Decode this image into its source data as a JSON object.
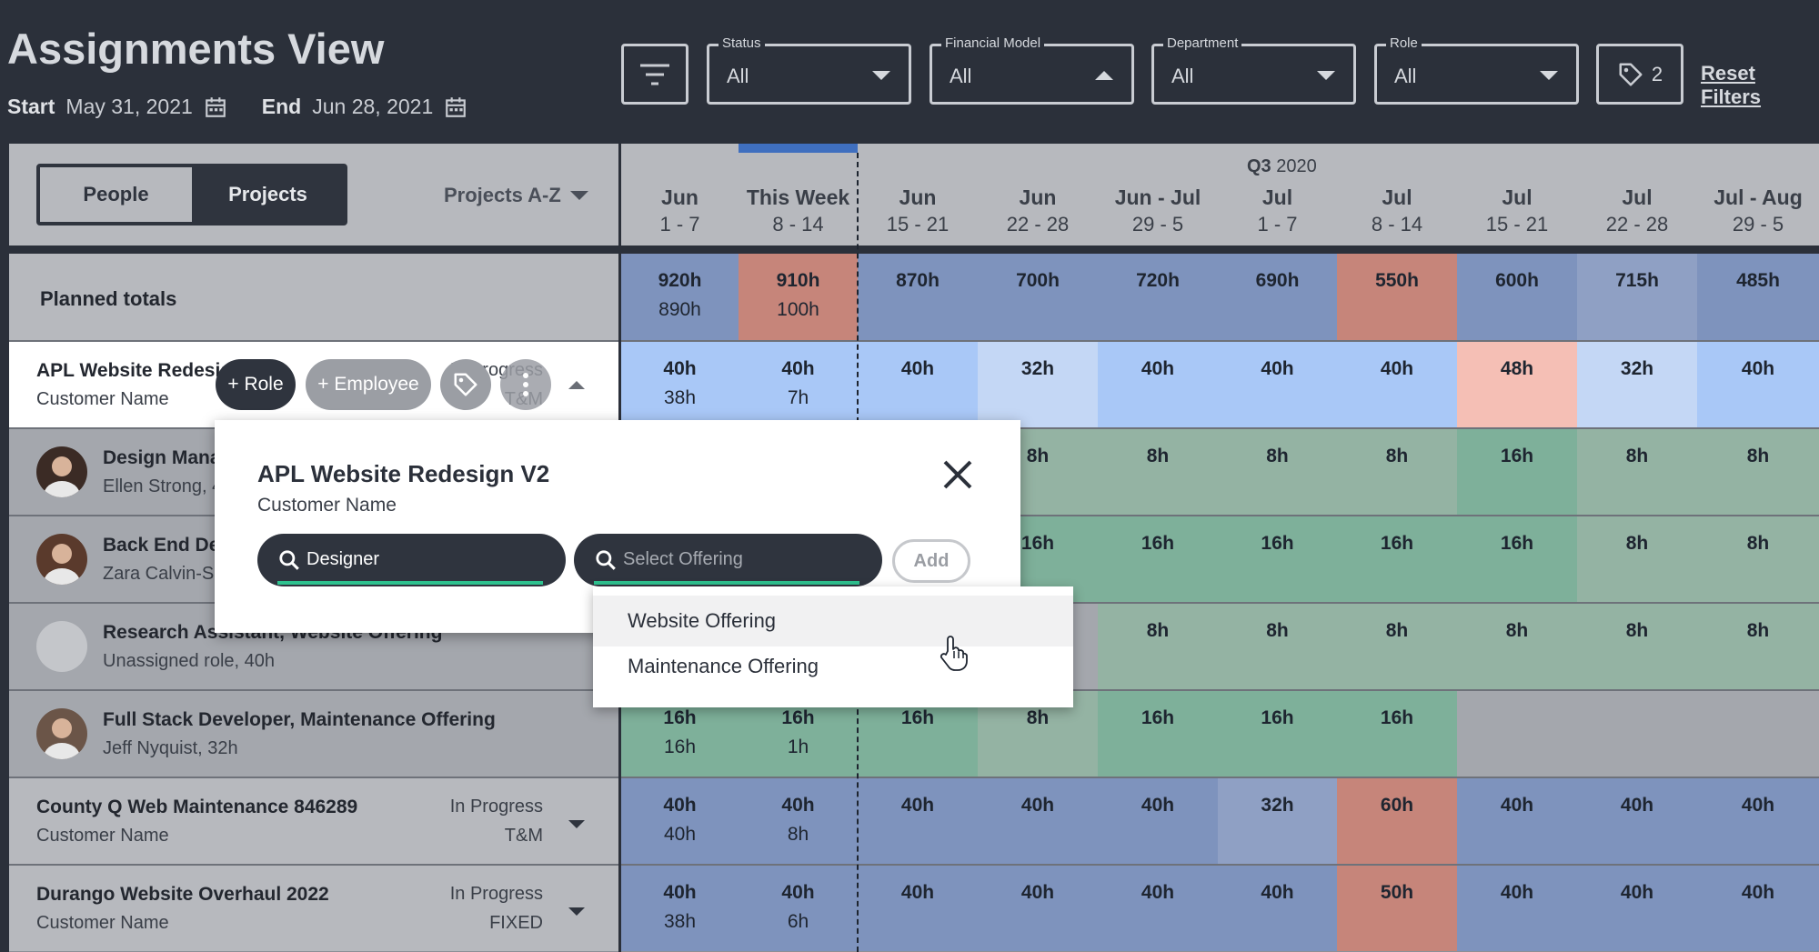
{
  "header": {
    "title": "Assignments View",
    "start_label": "Start",
    "start_date": "May 31, 2021",
    "end_label": "End",
    "end_date": "Jun 28, 2021",
    "filters": [
      {
        "label": "Status",
        "value": "All",
        "open": false
      },
      {
        "label": "Financial Model",
        "value": "All",
        "open": true
      },
      {
        "label": "Department",
        "value": "All",
        "open": false
      },
      {
        "label": "Role",
        "value": "All",
        "open": false
      }
    ],
    "tag_count": "2",
    "reset_label": "Reset Filters"
  },
  "toggle": {
    "people": "People",
    "projects": "Projects",
    "sort": "Projects A-Z"
  },
  "quarter": {
    "q": "Q3",
    "year": " 2020"
  },
  "weeks": [
    {
      "month": "Jun",
      "days": "1 - 7"
    },
    {
      "month": "This Week",
      "days": "8 - 14"
    },
    {
      "month": "Jun",
      "days": "15 - 21"
    },
    {
      "month": "Jun",
      "days": "22 - 28"
    },
    {
      "month": "Jun - Jul",
      "days": "29 - 5"
    },
    {
      "month": "Jul",
      "days": "1 - 7"
    },
    {
      "month": "Jul",
      "days": "8 - 14"
    },
    {
      "month": "Jul",
      "days": "15 - 21"
    },
    {
      "month": "Jul",
      "days": "22 - 28"
    },
    {
      "month": "Jul - Aug",
      "days": "29 - 5"
    }
  ],
  "planned": {
    "label": "Planned totals",
    "cells": [
      {
        "a": "920h",
        "b": "890h",
        "c": "#7e93bd"
      },
      {
        "a": "910h",
        "b": "100h",
        "c": "#c6857a"
      },
      {
        "a": "870h",
        "b": "",
        "c": "#7e93bd"
      },
      {
        "a": "700h",
        "b": "",
        "c": "#7e93bd"
      },
      {
        "a": "720h",
        "b": "",
        "c": "#7e93bd"
      },
      {
        "a": "690h",
        "b": "",
        "c": "#7e93bd"
      },
      {
        "a": "550h",
        "b": "",
        "c": "#c6857a"
      },
      {
        "a": "600h",
        "b": "",
        "c": "#7e93bd"
      },
      {
        "a": "715h",
        "b": "",
        "c": "#8fa0c4"
      },
      {
        "a": "485h",
        "b": "",
        "c": "#7e93bd"
      }
    ]
  },
  "projects": [
    {
      "title": "APL Website Redesign V2",
      "sub": "Customer Name",
      "status": "In Progress",
      "model": "T&M",
      "cells": [
        {
          "a": "40h",
          "b": "38h",
          "c": "#a9c8f7"
        },
        {
          "a": "40h",
          "b": "7h",
          "c": "#a9c8f7"
        },
        {
          "a": "40h",
          "b": "",
          "c": "#a9c8f7"
        },
        {
          "a": "32h",
          "b": "",
          "c": "#c4d7f5"
        },
        {
          "a": "40h",
          "b": "",
          "c": "#a9c8f7"
        },
        {
          "a": "40h",
          "b": "",
          "c": "#a9c8f7"
        },
        {
          "a": "40h",
          "b": "",
          "c": "#a9c8f7"
        },
        {
          "a": "48h",
          "b": "",
          "c": "#f5bfb5"
        },
        {
          "a": "32h",
          "b": "",
          "c": "#c4d7f5"
        },
        {
          "a": "40h",
          "b": "",
          "c": "#a9c8f7"
        }
      ]
    },
    {
      "title": "County Q Web Maintenance 846289",
      "sub": "Customer Name",
      "status": "In Progress",
      "model": "T&M",
      "cells": [
        {
          "a": "40h",
          "b": "40h",
          "c": "#7e93bd"
        },
        {
          "a": "40h",
          "b": "8h",
          "c": "#7e93bd"
        },
        {
          "a": "40h",
          "b": "",
          "c": "#7e93bd"
        },
        {
          "a": "40h",
          "b": "",
          "c": "#7e93bd"
        },
        {
          "a": "40h",
          "b": "",
          "c": "#7e93bd"
        },
        {
          "a": "32h",
          "b": "",
          "c": "#8fa0c4"
        },
        {
          "a": "60h",
          "b": "",
          "c": "#c6857a"
        },
        {
          "a": "40h",
          "b": "",
          "c": "#7e93bd"
        },
        {
          "a": "40h",
          "b": "",
          "c": "#7e93bd"
        },
        {
          "a": "40h",
          "b": "",
          "c": "#7e93bd"
        }
      ]
    },
    {
      "title": "Durango Website Overhaul 2022",
      "sub": "Customer Name",
      "status": "In Progress",
      "model": "FIXED",
      "cells": [
        {
          "a": "40h",
          "b": "38h",
          "c": "#7e93bd"
        },
        {
          "a": "40h",
          "b": "6h",
          "c": "#7e93bd"
        },
        {
          "a": "40h",
          "b": "",
          "c": "#7e93bd"
        },
        {
          "a": "40h",
          "b": "",
          "c": "#7e93bd"
        },
        {
          "a": "40h",
          "b": "",
          "c": "#7e93bd"
        },
        {
          "a": "40h",
          "b": "",
          "c": "#7e93bd"
        },
        {
          "a": "50h",
          "b": "",
          "c": "#c6857a"
        },
        {
          "a": "40h",
          "b": "",
          "c": "#7e93bd"
        },
        {
          "a": "40h",
          "b": "",
          "c": "#7e93bd"
        },
        {
          "a": "40h",
          "b": "",
          "c": "#7e93bd"
        }
      ]
    }
  ],
  "roles": [
    {
      "title": "Design Manager, Website Offering",
      "sub": "Ellen Strong, 40h",
      "avatar": "#3b2b25",
      "cells": [
        {
          "a": "",
          "b": "",
          "c": "#94b3a3"
        },
        {
          "a": "",
          "b": "",
          "c": "#94b3a3"
        },
        {
          "a": "",
          "b": "",
          "c": "#94b3a3"
        },
        {
          "a": "8h",
          "b": "",
          "c": "#94b3a3"
        },
        {
          "a": "8h",
          "b": "",
          "c": "#94b3a3"
        },
        {
          "a": "8h",
          "b": "",
          "c": "#94b3a3"
        },
        {
          "a": "8h",
          "b": "",
          "c": "#94b3a3"
        },
        {
          "a": "16h",
          "b": "",
          "c": "#7eb09a"
        },
        {
          "a": "8h",
          "b": "",
          "c": "#94b3a3"
        },
        {
          "a": "8h",
          "b": "",
          "c": "#94b3a3"
        }
      ]
    },
    {
      "title": "Back End Developer, Website Offering",
      "sub": "Zara Calvin-Smith, 40h",
      "avatar": "#5a3a2c",
      "cells": [
        {
          "a": "",
          "b": "",
          "c": "#7eb09a"
        },
        {
          "a": "",
          "b": "",
          "c": "#7eb09a"
        },
        {
          "a": "",
          "b": "",
          "c": "#7eb09a"
        },
        {
          "a": "16h",
          "b": "",
          "c": "#7eb09a"
        },
        {
          "a": "16h",
          "b": "",
          "c": "#7eb09a"
        },
        {
          "a": "16h",
          "b": "",
          "c": "#7eb09a"
        },
        {
          "a": "16h",
          "b": "",
          "c": "#7eb09a"
        },
        {
          "a": "16h",
          "b": "",
          "c": "#7eb09a"
        },
        {
          "a": "8h",
          "b": "",
          "c": "#94b3a3"
        },
        {
          "a": "8h",
          "b": "",
          "c": "#94b3a3"
        }
      ]
    },
    {
      "title": "Research Assistant, Website Offering",
      "sub": "Unassigned role, 40h",
      "avatar": "#c4c6ca",
      "cells": [
        {
          "a": "",
          "b": "",
          "c": "#a4a7ad"
        },
        {
          "a": "",
          "b": "",
          "c": "#a4a7ad"
        },
        {
          "a": "",
          "b": "",
          "c": "#a4a7ad"
        },
        {
          "a": "",
          "b": "",
          "c": "#a4a7ad"
        },
        {
          "a": "8h",
          "b": "",
          "c": "#94b3a3"
        },
        {
          "a": "8h",
          "b": "",
          "c": "#94b3a3"
        },
        {
          "a": "8h",
          "b": "",
          "c": "#94b3a3"
        },
        {
          "a": "8h",
          "b": "",
          "c": "#94b3a3"
        },
        {
          "a": "8h",
          "b": "",
          "c": "#94b3a3"
        },
        {
          "a": "8h",
          "b": "",
          "c": "#94b3a3"
        }
      ]
    },
    {
      "title": "Full Stack Developer, Maintenance Offering",
      "sub": "Jeff Nyquist, 32h",
      "avatar": "#6b5548",
      "cells": [
        {
          "a": "16h",
          "b": "16h",
          "c": "#7eb09a"
        },
        {
          "a": "16h",
          "b": "1h",
          "c": "#7eb09a"
        },
        {
          "a": "16h",
          "b": "",
          "c": "#7eb09a"
        },
        {
          "a": "8h",
          "b": "",
          "c": "#94b3a3"
        },
        {
          "a": "16h",
          "b": "",
          "c": "#7eb09a"
        },
        {
          "a": "16h",
          "b": "",
          "c": "#7eb09a"
        },
        {
          "a": "16h",
          "b": "",
          "c": "#7eb09a"
        },
        {
          "a": "",
          "b": "",
          "c": "#a4a7ad"
        },
        {
          "a": "",
          "b": "",
          "c": "#a4a7ad"
        },
        {
          "a": "",
          "b": "",
          "c": "#a4a7ad"
        }
      ]
    }
  ],
  "row_actions": {
    "role": "+ Role",
    "employee": "+ Employee"
  },
  "popup": {
    "title": "APL Website Redesign V2",
    "subtitle": "Customer Name",
    "role_search_value": "Designer",
    "offering_placeholder": "Select Offering",
    "add_label": "Add",
    "options": [
      "Website Offering",
      "Maintenance Offering"
    ]
  }
}
